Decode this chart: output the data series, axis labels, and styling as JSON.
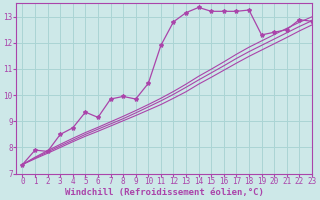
{
  "xlabel": "Windchill (Refroidissement éolien,°C)",
  "xlim": [
    -0.5,
    23
  ],
  "ylim": [
    7,
    13.5
  ],
  "xticks": [
    0,
    1,
    2,
    3,
    4,
    5,
    6,
    7,
    8,
    9,
    10,
    11,
    12,
    13,
    14,
    15,
    16,
    17,
    18,
    19,
    20,
    21,
    22,
    23
  ],
  "yticks": [
    7,
    8,
    9,
    10,
    11,
    12,
    13
  ],
  "bg_color": "#cde8e8",
  "grid_color": "#aad4d4",
  "line_color": "#aa44aa",
  "measured_x": [
    0,
    1,
    2,
    3,
    4,
    5,
    6,
    7,
    8,
    9,
    10,
    11,
    12,
    13,
    14,
    15,
    16,
    17,
    18,
    19,
    20,
    21,
    22,
    23
  ],
  "measured_y": [
    7.35,
    7.9,
    7.85,
    8.5,
    8.75,
    9.35,
    9.15,
    9.85,
    9.95,
    9.85,
    10.45,
    11.9,
    12.8,
    13.15,
    13.35,
    13.2,
    13.2,
    13.2,
    13.25,
    12.3,
    12.4,
    12.5,
    12.88,
    12.82
  ],
  "line2_x": [
    0,
    1,
    2,
    3,
    4,
    5,
    6,
    7,
    8,
    9,
    10,
    11,
    12,
    13,
    14,
    15,
    16,
    17,
    18,
    19,
    20,
    21,
    22,
    23
  ],
  "line2_y": [
    7.35,
    7.57,
    7.78,
    8.0,
    8.22,
    8.43,
    8.62,
    8.82,
    9.02,
    9.22,
    9.43,
    9.64,
    9.88,
    10.13,
    10.42,
    10.68,
    10.95,
    11.22,
    11.48,
    11.72,
    11.96,
    12.2,
    12.45,
    12.68
  ],
  "line3_x": [
    0,
    1,
    2,
    3,
    4,
    5,
    6,
    7,
    8,
    9,
    10,
    11,
    12,
    13,
    14,
    15,
    16,
    17,
    18,
    19,
    20,
    21,
    22,
    23
  ],
  "line3_y": [
    7.35,
    7.6,
    7.83,
    8.06,
    8.28,
    8.5,
    8.7,
    8.9,
    9.1,
    9.32,
    9.55,
    9.78,
    10.03,
    10.3,
    10.58,
    10.85,
    11.12,
    11.4,
    11.66,
    11.9,
    12.14,
    12.38,
    12.62,
    12.84
  ],
  "line4_x": [
    0,
    1,
    2,
    3,
    4,
    5,
    6,
    7,
    8,
    9,
    10,
    11,
    12,
    13,
    14,
    15,
    16,
    17,
    18,
    19,
    20,
    21,
    22,
    23
  ],
  "line4_y": [
    7.35,
    7.63,
    7.88,
    8.12,
    8.35,
    8.57,
    8.77,
    8.98,
    9.19,
    9.41,
    9.64,
    9.88,
    10.14,
    10.42,
    10.72,
    10.99,
    11.27,
    11.56,
    11.83,
    12.07,
    12.31,
    12.55,
    12.78,
    12.99
  ],
  "tick_fontsize": 5.5,
  "label_fontsize": 6.5
}
